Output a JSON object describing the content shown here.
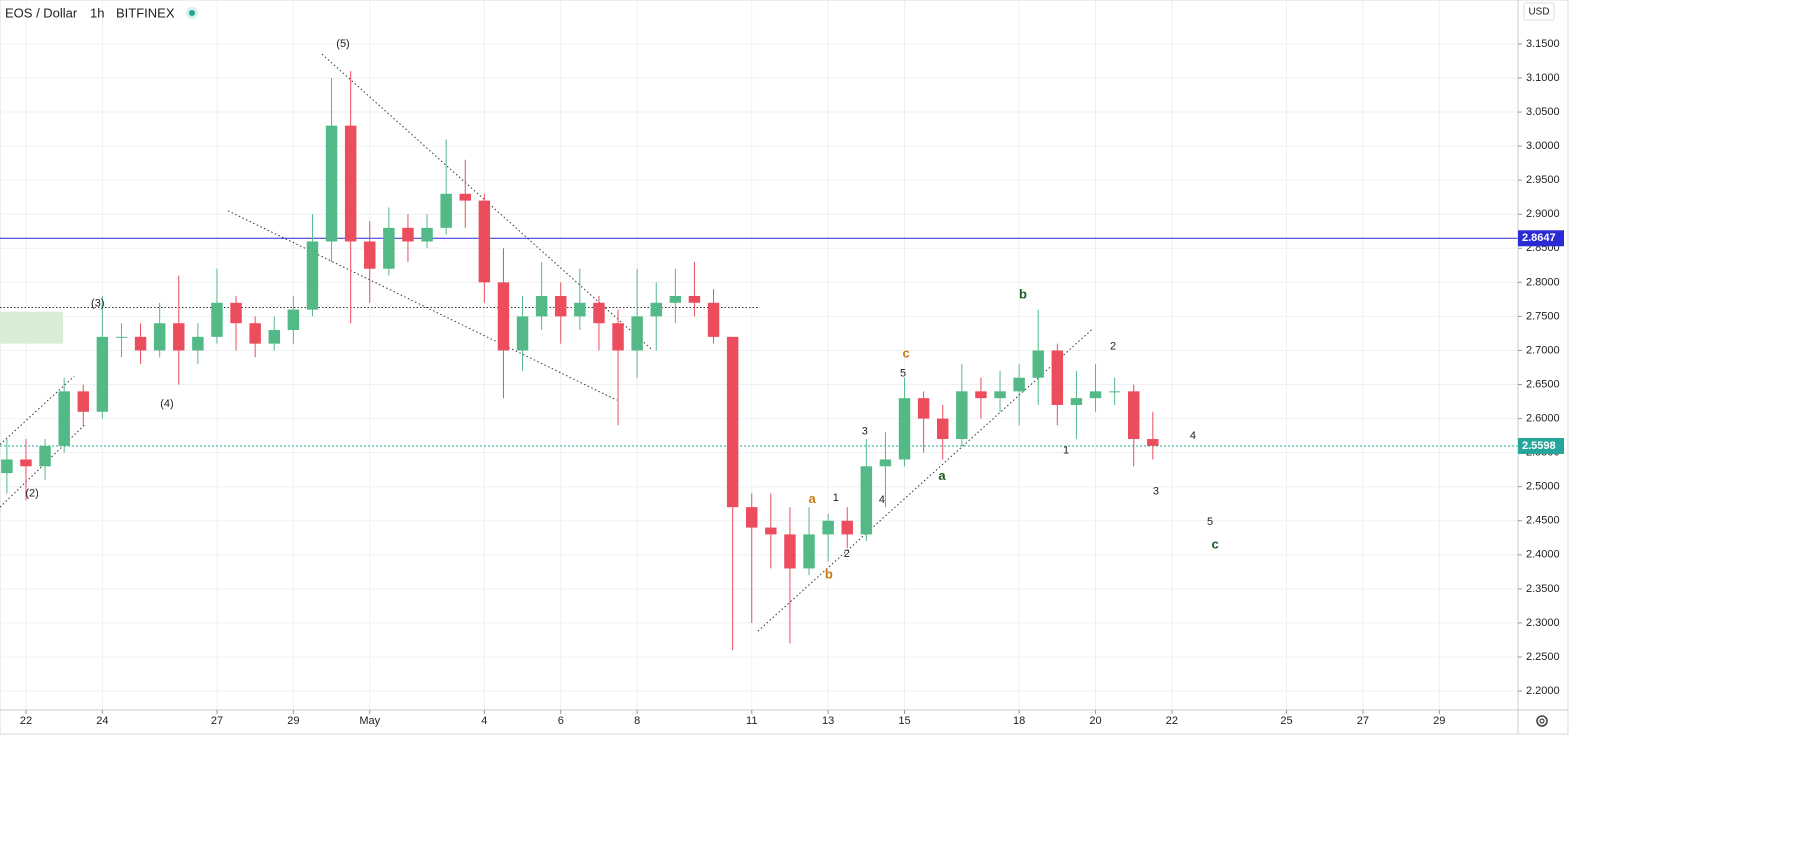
{
  "chart_data": {
    "type": "candlestick",
    "title": "EOS / Dollar",
    "interval": "1h",
    "exchange": "BITFINEX",
    "y_axis_label": "USD",
    "up_color": "#53b987",
    "down_color": "#eb4d5c",
    "x": [
      -0.5,
      0,
      0.5,
      1,
      1.5,
      2,
      2.5,
      3,
      3.5,
      4,
      4.5,
      5,
      5.5,
      6,
      6.5,
      7,
      7.5,
      8,
      8.5,
      9,
      9.5,
      10,
      10.5,
      11,
      11.5,
      12,
      12.5,
      13,
      13.5,
      14,
      14.5,
      15,
      15.5,
      16,
      16.5,
      17,
      17.5,
      18,
      18.5,
      19,
      19.5,
      20,
      20.5,
      21,
      21.5,
      22,
      22.5,
      23,
      23.5,
      24,
      24.5,
      25,
      25.5,
      26,
      26.5,
      27,
      27.5,
      28,
      28.5,
      29,
      29.5
    ],
    "open": [
      2.52,
      2.54,
      2.53,
      2.56,
      2.64,
      2.61,
      2.72,
      2.72,
      2.7,
      2.74,
      2.7,
      2.72,
      2.77,
      2.74,
      2.71,
      2.73,
      2.76,
      2.86,
      3.03,
      2.86,
      2.82,
      2.88,
      2.86,
      2.88,
      2.93,
      2.92,
      2.8,
      2.7,
      2.75,
      2.78,
      2.75,
      2.77,
      2.74,
      2.7,
      2.75,
      2.77,
      2.78,
      2.77,
      2.72,
      2.47,
      2.44,
      2.43,
      2.38,
      2.43,
      2.45,
      2.43,
      2.53,
      2.54,
      2.63,
      2.6,
      2.57,
      2.64,
      2.63,
      2.64,
      2.66,
      2.7,
      2.62,
      2.63,
      2.64,
      2.64,
      2.57
    ],
    "high": [
      2.57,
      2.57,
      2.57,
      2.66,
      2.65,
      2.78,
      2.74,
      2.74,
      2.77,
      2.81,
      2.74,
      2.82,
      2.78,
      2.75,
      2.75,
      2.78,
      2.9,
      3.1,
      3.11,
      2.89,
      2.91,
      2.9,
      2.9,
      3.01,
      2.98,
      2.93,
      2.85,
      2.78,
      2.83,
      2.8,
      2.82,
      2.78,
      2.76,
      2.82,
      2.8,
      2.82,
      2.83,
      2.79,
      2.72,
      2.49,
      2.49,
      2.47,
      2.47,
      2.46,
      2.47,
      2.57,
      2.58,
      2.66,
      2.64,
      2.62,
      2.68,
      2.66,
      2.67,
      2.68,
      2.76,
      2.71,
      2.67,
      2.68,
      2.66,
      2.65,
      2.61
    ],
    "low": [
      2.49,
      2.48,
      2.51,
      2.55,
      2.59,
      2.6,
      2.69,
      2.68,
      2.69,
      2.65,
      2.68,
      2.71,
      2.7,
      2.69,
      2.7,
      2.71,
      2.75,
      2.83,
      2.74,
      2.77,
      2.81,
      2.83,
      2.85,
      2.87,
      2.88,
      2.77,
      2.63,
      2.67,
      2.73,
      2.71,
      2.73,
      2.7,
      2.59,
      2.66,
      2.7,
      2.74,
      2.75,
      2.71,
      2.26,
      2.3,
      2.38,
      2.27,
      2.37,
      2.39,
      2.41,
      2.42,
      2.47,
      2.53,
      2.55,
      2.54,
      2.56,
      2.6,
      2.61,
      2.59,
      2.62,
      2.59,
      2.57,
      2.61,
      2.62,
      2.53,
      2.54
    ],
    "close": [
      2.54,
      2.53,
      2.56,
      2.64,
      2.61,
      2.72,
      2.72,
      2.7,
      2.74,
      2.7,
      2.72,
      2.77,
      2.74,
      2.71,
      2.73,
      2.76,
      2.86,
      3.03,
      2.86,
      2.82,
      2.88,
      2.86,
      2.88,
      2.93,
      2.92,
      2.8,
      2.7,
      2.75,
      2.78,
      2.75,
      2.77,
      2.74,
      2.7,
      2.75,
      2.77,
      2.78,
      2.77,
      2.72,
      2.47,
      2.44,
      2.43,
      2.38,
      2.43,
      2.45,
      2.43,
      2.53,
      2.54,
      2.63,
      2.6,
      2.57,
      2.64,
      2.63,
      2.64,
      2.66,
      2.7,
      2.62,
      2.63,
      2.64,
      2.64,
      2.57,
      2.56
    ],
    "xlim": [
      -0.68,
      39.06
    ],
    "ylim": [
      2.1722,
      3.2145
    ],
    "xticks": [
      {
        "value": 0,
        "label": "22"
      },
      {
        "value": 2,
        "label": "24"
      },
      {
        "value": 5,
        "label": "27"
      },
      {
        "value": 7,
        "label": "29"
      },
      {
        "value": 9,
        "label": "May"
      },
      {
        "value": 12,
        "label": "4"
      },
      {
        "value": 14,
        "label": "6"
      },
      {
        "value": 16,
        "label": "8"
      },
      {
        "value": 19,
        "label": "11"
      },
      {
        "value": 21,
        "label": "13"
      },
      {
        "value": 23,
        "label": "15"
      },
      {
        "value": 26,
        "label": "18"
      },
      {
        "value": 28,
        "label": "20"
      },
      {
        "value": 30,
        "label": "22"
      },
      {
        "value": 33,
        "label": "25"
      },
      {
        "value": 35,
        "label": "27"
      },
      {
        "value": 37,
        "label": "29"
      }
    ],
    "yticks": [
      {
        "value": 2.2,
        "label": "2.2000"
      },
      {
        "value": 2.25,
        "label": "2.2500"
      },
      {
        "value": 2.3,
        "label": "2.3000"
      },
      {
        "value": 2.35,
        "label": "2.3500"
      },
      {
        "value": 2.4,
        "label": "2.4000"
      },
      {
        "value": 2.45,
        "label": "2.4500"
      },
      {
        "value": 2.5,
        "label": "2.5000"
      },
      {
        "value": 2.55,
        "label": "2.5500"
      },
      {
        "value": 2.6,
        "label": "2.6000"
      },
      {
        "value": 2.65,
        "label": "2.6500"
      },
      {
        "value": 2.7,
        "label": "2.7000"
      },
      {
        "value": 2.75,
        "label": "2.7500"
      },
      {
        "value": 2.8,
        "label": "2.8000"
      },
      {
        "value": 2.85,
        "label": "2.8500"
      },
      {
        "value": 2.9,
        "label": "2.9000"
      },
      {
        "value": 2.95,
        "label": "2.9500"
      },
      {
        "value": 3.0,
        "label": "3.0000"
      },
      {
        "value": 3.05,
        "label": "3.0500"
      },
      {
        "value": 3.1,
        "label": "3.1000"
      },
      {
        "value": 3.15,
        "label": "3.1500"
      }
    ],
    "grid": true,
    "price_lines": [
      {
        "value": 2.8647,
        "color": "#2b2bd6",
        "style": "solid"
      },
      {
        "value": 2.5598,
        "color": "#26a69a",
        "style": "dotted"
      }
    ],
    "level_line": {
      "value": 2.763,
      "x": [
        -0.68,
        19.21
      ]
    },
    "zone": {
      "x": [
        -0.68,
        0.97
      ],
      "y": [
        2.71,
        2.757
      ],
      "color": "#d8ecd6"
    },
    "trendlines": [
      {
        "x": [
          -0.68,
          1.54
        ],
        "y": [
          2.47,
          2.591
        ]
      },
      {
        "x": [
          -0.68,
          1.26
        ],
        "y": [
          2.562,
          2.662
        ]
      },
      {
        "x": [
          7.75,
          16.39
        ],
        "y": [
          3.135,
          2.701
        ]
      },
      {
        "x": [
          5.29,
          15.47
        ],
        "y": [
          2.905,
          2.627
        ]
      },
      {
        "x": [
          19.16,
          27.93
        ],
        "y": [
          2.288,
          2.732
        ]
      }
    ],
    "annotations": [
      {
        "text": "(5)",
        "x": 8.3,
        "y": 3.15,
        "color": "#222"
      },
      {
        "text": "(3)",
        "x": 1.88,
        "y": 2.769,
        "color": "#222"
      },
      {
        "text": "(4)",
        "x": 3.69,
        "y": 2.621,
        "color": "#222"
      },
      {
        "text": "(2)",
        "x": 0.16,
        "y": 2.49,
        "color": "#222"
      },
      {
        "text": "a",
        "x": 20.58,
        "y": 2.481,
        "color": "#c97a0a"
      },
      {
        "text": "b",
        "x": 21.02,
        "y": 2.37,
        "color": "#c97a0a"
      },
      {
        "text": "c",
        "x": 23.04,
        "y": 2.695,
        "color": "#c97a0a"
      },
      {
        "text": "1",
        "x": 21.2,
        "y": 2.483,
        "color": "#222"
      },
      {
        "text": "2",
        "x": 21.49,
        "y": 2.401,
        "color": "#222"
      },
      {
        "text": "3",
        "x": 21.96,
        "y": 2.581,
        "color": "#222"
      },
      {
        "text": "4",
        "x": 22.41,
        "y": 2.48,
        "color": "#222"
      },
      {
        "text": "5",
        "x": 22.96,
        "y": 2.666,
        "color": "#222"
      },
      {
        "text": "a",
        "x": 23.98,
        "y": 2.515,
        "color": "#1b5e20"
      },
      {
        "text": "b",
        "x": 26.1,
        "y": 2.781,
        "color": "#1b5e20"
      },
      {
        "text": "2",
        "x": 28.46,
        "y": 2.706,
        "color": "#222"
      },
      {
        "text": "1",
        "x": 27.23,
        "y": 2.553,
        "color": "#222"
      },
      {
        "text": "3",
        "x": 29.58,
        "y": 2.493,
        "color": "#222"
      },
      {
        "text": "4",
        "x": 30.55,
        "y": 2.574,
        "color": "#222"
      },
      {
        "text": "5",
        "x": 31.0,
        "y": 2.448,
        "color": "#222"
      },
      {
        "text": "c",
        "x": 31.13,
        "y": 2.414,
        "color": "#1b5e20"
      }
    ]
  }
}
